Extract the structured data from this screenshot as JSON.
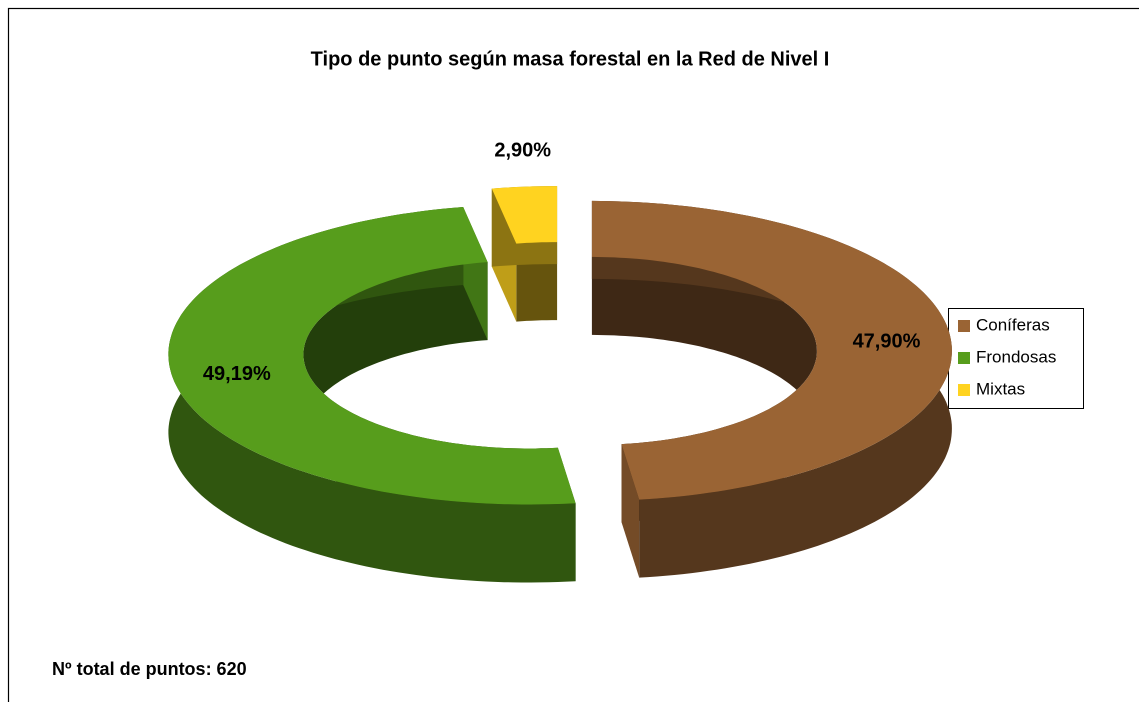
{
  "chart_data": {
    "type": "donut",
    "title": "Tipo de punto según masa forestal en la Red de Nivel I",
    "categories": [
      "Coníferas",
      "Frondosas",
      "Mixtas"
    ],
    "values": [
      47.9,
      49.19,
      2.9
    ],
    "value_labels": [
      "47,90%",
      "49,19%",
      "2,90%"
    ],
    "colors": [
      "#9a6434",
      "#579d1c",
      "#ffd320"
    ],
    "legend": "right",
    "annotation": "Nº total de puntos: 620"
  }
}
